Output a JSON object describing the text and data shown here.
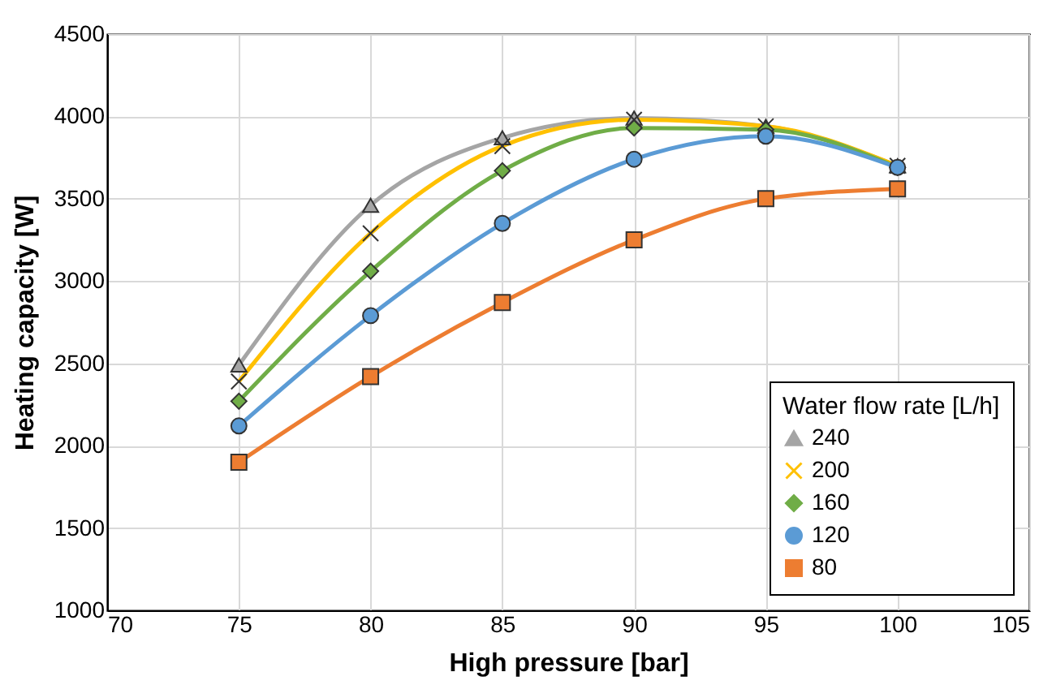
{
  "chart_data": {
    "type": "line",
    "xlabel": "High pressure [bar]",
    "ylabel": "Heating capacity [W]",
    "legend_title": "Water flow rate [L/h]",
    "x": [
      75,
      80,
      85,
      90,
      95,
      100
    ],
    "series": [
      {
        "name": "240",
        "color": "#a5a5a5",
        "marker": "triangle",
        "values": [
          2490,
          3460,
          3870,
          3990,
          3940,
          3700
        ]
      },
      {
        "name": "200",
        "color": "#ffc000",
        "marker": "cross",
        "values": [
          2390,
          3290,
          3820,
          3980,
          3940,
          3700
        ]
      },
      {
        "name": "160",
        "color": "#70ad47",
        "marker": "diamond",
        "values": [
          2270,
          3060,
          3670,
          3930,
          3920,
          3690
        ]
      },
      {
        "name": "120",
        "color": "#5b9bd5",
        "marker": "circle",
        "values": [
          2120,
          2790,
          3350,
          3740,
          3880,
          3690
        ]
      },
      {
        "name": "80",
        "color": "#ed7d31",
        "marker": "square",
        "values": [
          1900,
          2420,
          2870,
          3250,
          3500,
          3560
        ]
      }
    ],
    "xlim": [
      70,
      105
    ],
    "xticks": [
      70,
      75,
      80,
      85,
      90,
      95,
      100,
      105
    ],
    "ylim": [
      1000,
      4500
    ],
    "yticks": [
      1000,
      1500,
      2000,
      2500,
      3000,
      3500,
      4000,
      4500
    ],
    "grid": true,
    "legend": "bottom right",
    "line_style": "solid"
  }
}
